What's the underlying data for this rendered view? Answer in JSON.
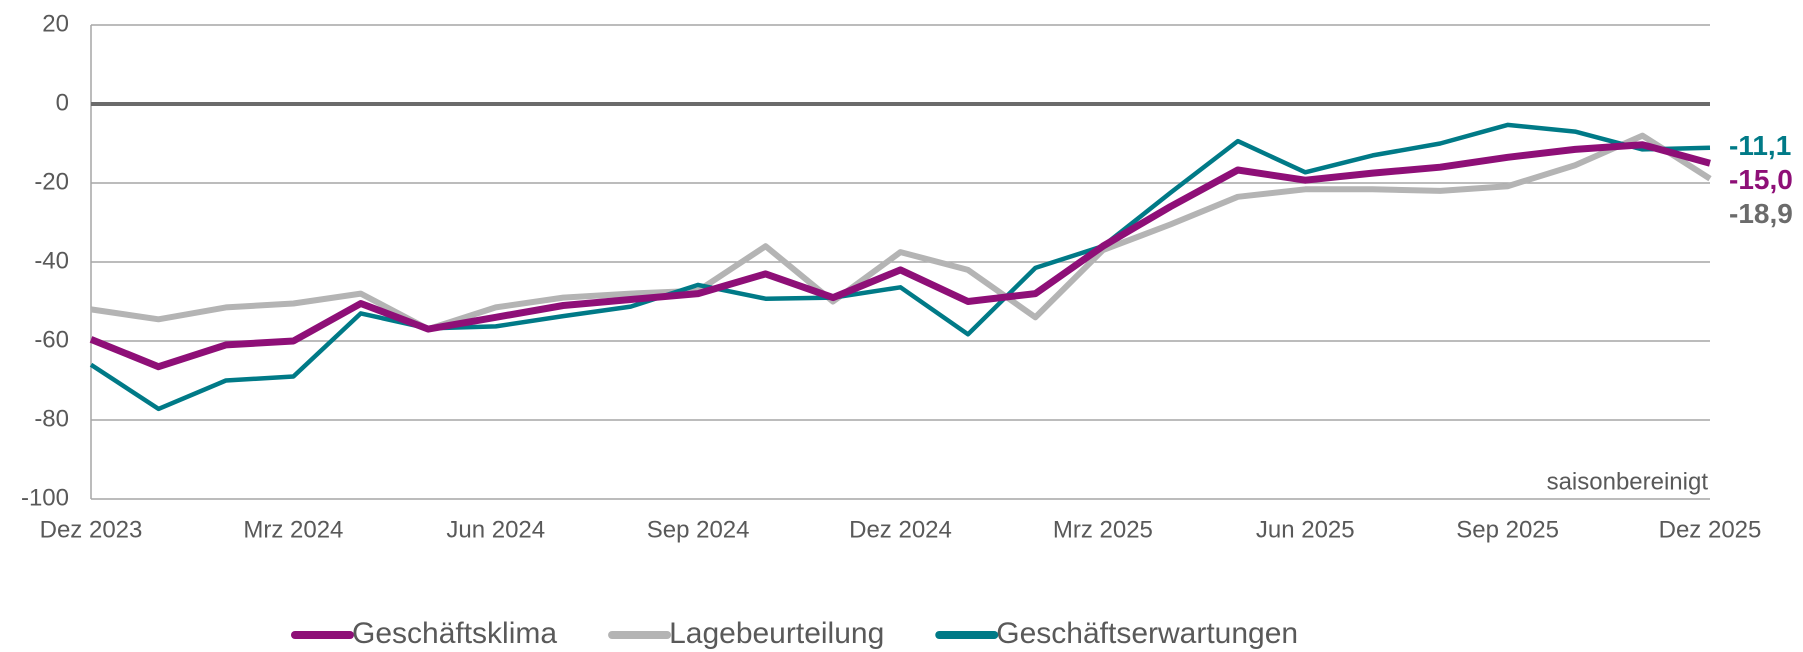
{
  "chart_data": {
    "type": "line",
    "annotation": "saisonbereinigt",
    "categories": [
      "Dez 2023",
      null,
      null,
      "Mrz 2024",
      null,
      null,
      "Jun 2024",
      null,
      null,
      "Sep 2024",
      null,
      null,
      "Dez 2024",
      null,
      null,
      "Mrz 2025",
      null,
      null,
      "Jun 2025",
      null,
      null,
      "Sep 2025",
      null,
      null,
      "Dez 2025"
    ],
    "ylim": [
      -100,
      20
    ],
    "yticks": [
      -100,
      -80,
      -60,
      -40,
      -20,
      0,
      20
    ],
    "grid": true,
    "legend": "bottom",
    "series": [
      {
        "name": "Geschäftsklima",
        "color": "#8e0f77",
        "values": [
          -59.6,
          -66.5,
          -61,
          -60,
          -50.5,
          -57,
          -54,
          -51,
          -49.5,
          -48,
          -43,
          -49,
          -42,
          -50,
          -48,
          -36,
          -26,
          -16.7,
          -19.3,
          -17.5,
          -16,
          -13.5,
          -11.5,
          -10.3,
          -15.0
        ],
        "value_labels": [
          null,
          null,
          null,
          null,
          null,
          null,
          null,
          null,
          null,
          null,
          null,
          null,
          null,
          null,
          null,
          null,
          null,
          null,
          null,
          null,
          null,
          null,
          null,
          null,
          "-15,0"
        ]
      },
      {
        "name": "Lagebeurteilung",
        "color": "#b4b4b4",
        "values": [
          -52,
          -54.5,
          -51.5,
          -50.5,
          -48,
          -57,
          -51.5,
          -49,
          -48,
          -47.3,
          -36,
          -50,
          -37.5,
          -42,
          -54,
          -37,
          -30.5,
          -23.5,
          -21.6,
          -21.6,
          -22,
          -20.8,
          -15.5,
          -8,
          -18.9
        ],
        "value_labels": [
          null,
          null,
          null,
          null,
          null,
          null,
          null,
          null,
          null,
          null,
          null,
          null,
          null,
          null,
          null,
          null,
          null,
          null,
          null,
          null,
          null,
          null,
          null,
          null,
          "-18,9"
        ]
      },
      {
        "name": "Geschäftserwartungen",
        "color": "#007a87",
        "values": [
          -66,
          -77.2,
          -70,
          -69,
          -53,
          -56.8,
          -56.3,
          -53.7,
          -51.3,
          -45.8,
          -49.3,
          -49,
          -46.4,
          -58.3,
          -41.5,
          -36,
          -22.5,
          -9.4,
          -17.3,
          -13,
          -10,
          -5.3,
          -7,
          -11.5,
          -11.1
        ],
        "value_labels": [
          null,
          null,
          null,
          null,
          null,
          null,
          null,
          null,
          null,
          null,
          null,
          null,
          null,
          null,
          null,
          null,
          null,
          null,
          null,
          null,
          null,
          null,
          null,
          null,
          "-11,1"
        ]
      }
    ]
  }
}
